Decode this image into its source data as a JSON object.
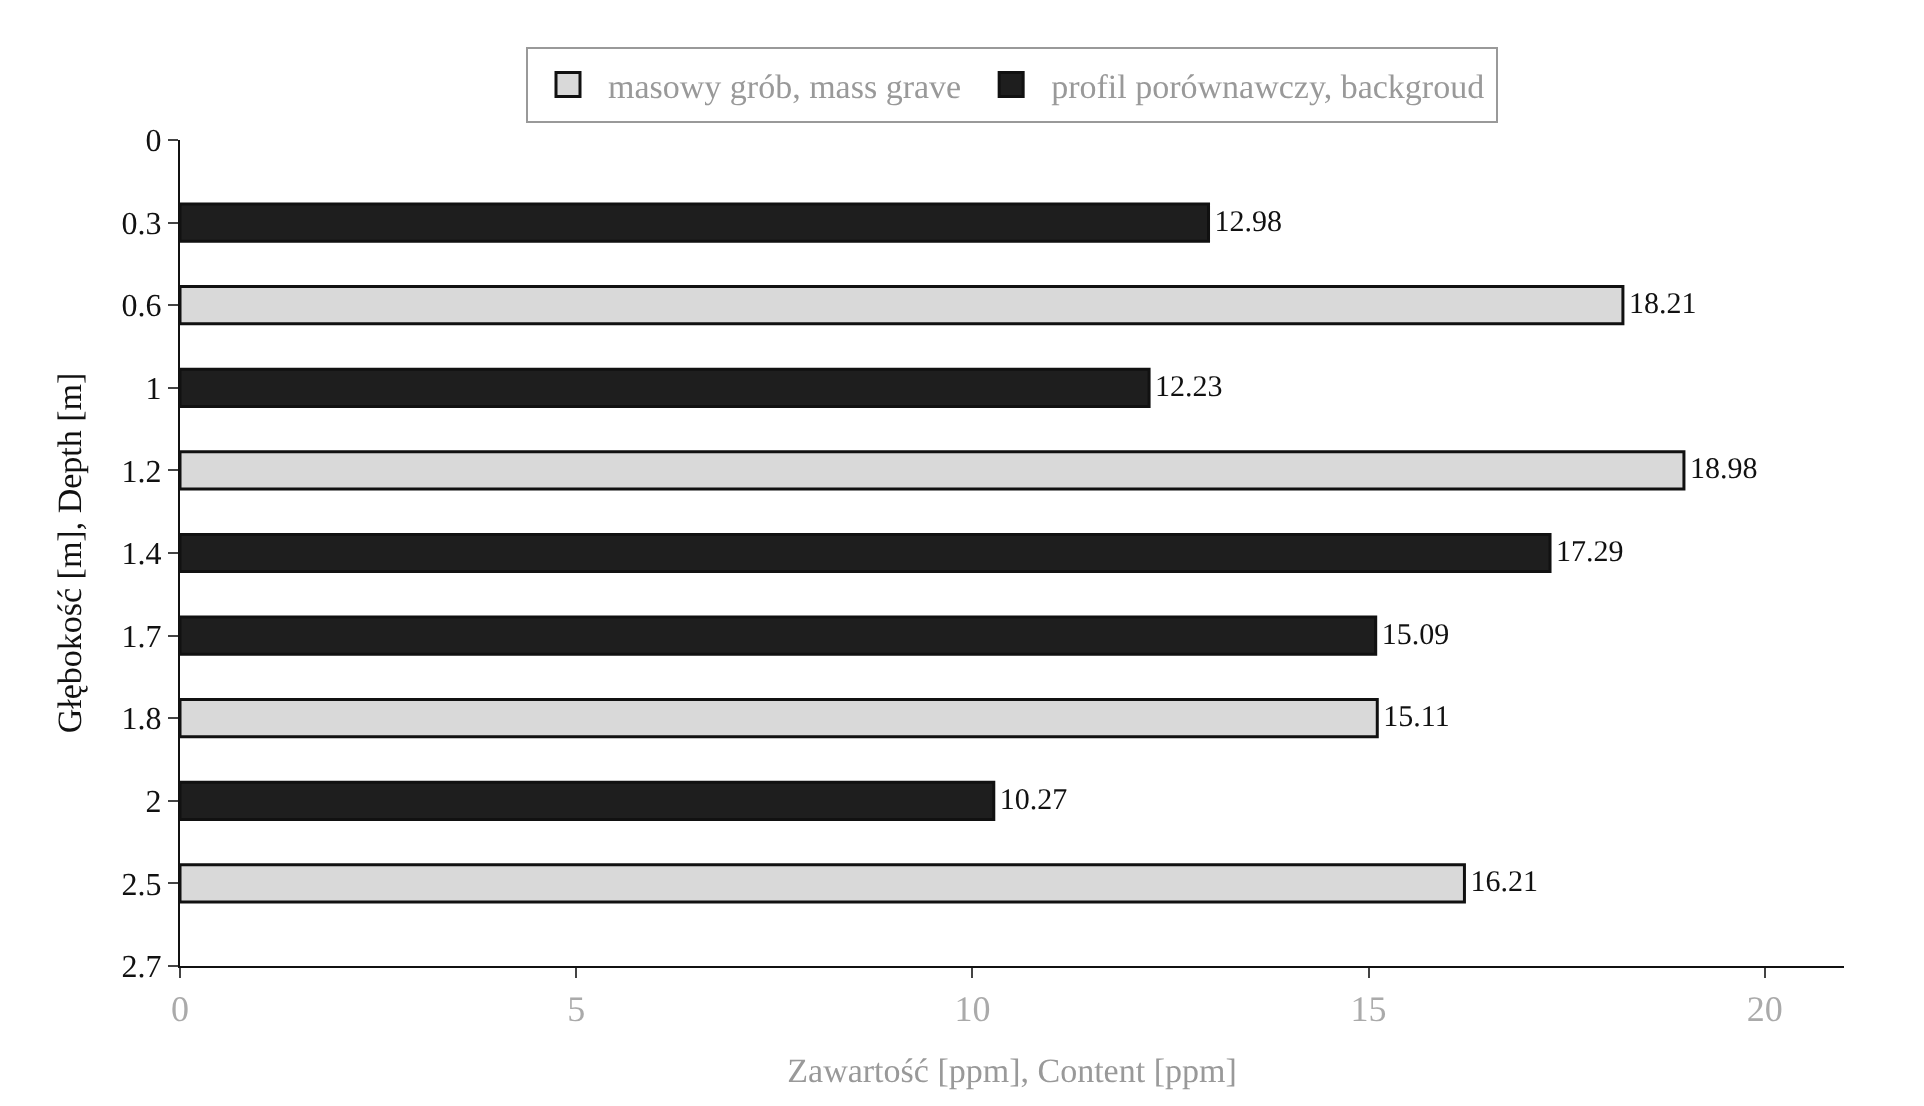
{
  "chart_data": {
    "type": "bar",
    "orientation": "horizontal",
    "xlabel": "Zawartość [ppm], Content [ppm]",
    "ylabel": "Głębokość [m], Depth [m]",
    "categories": [
      "0",
      "0.3",
      "0.6",
      "1",
      "1.2",
      "1.4",
      "1.7",
      "1.8",
      "2",
      "2.5",
      "2.7"
    ],
    "series": [
      {
        "name": "masowy grób, mass grave",
        "color": "#d9d9d9",
        "values": [
          null,
          null,
          18.21,
          null,
          18.98,
          null,
          null,
          15.11,
          null,
          16.21,
          null
        ]
      },
      {
        "name": "profil porównawczy, backgroud",
        "color": "#1e1e1e",
        "values": [
          null,
          12.98,
          null,
          12.23,
          null,
          17.29,
          15.09,
          null,
          10.27,
          null,
          null
        ]
      }
    ],
    "xlim": [
      0,
      21
    ],
    "xticks": [
      0,
      5,
      10,
      15,
      20
    ],
    "data_labels": true,
    "legend": "top"
  }
}
